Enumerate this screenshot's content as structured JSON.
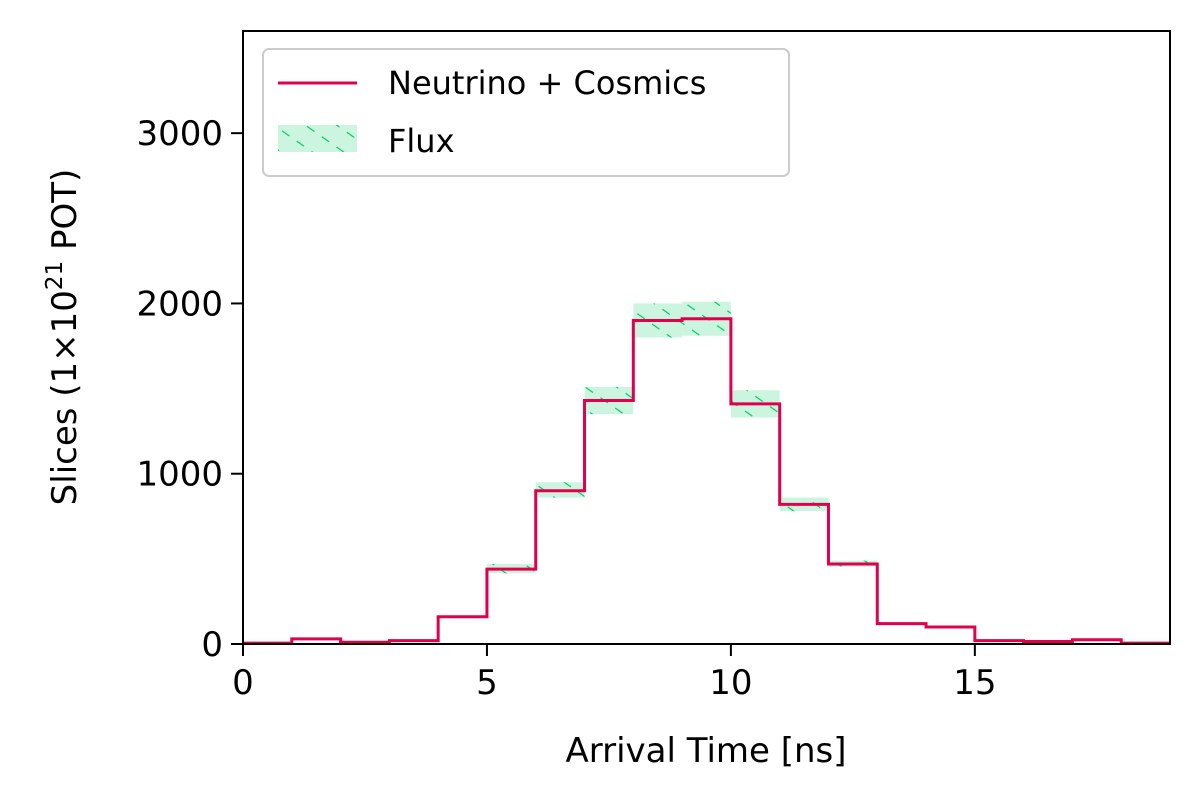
{
  "chart_data": {
    "type": "histogram",
    "xlabel": "Arrival Time [ns]",
    "ylabel": {
      "prefix": "Slices (1×10",
      "superscript": "21",
      "suffix": " POT)"
    },
    "xlim": [
      0,
      19
    ],
    "ylim": [
      0,
      3600
    ],
    "xticks": [
      0,
      5,
      10,
      15
    ],
    "yticks": [
      0,
      1000,
      2000,
      3000
    ],
    "bin_edges": [
      0,
      1,
      2,
      3,
      4,
      5,
      6,
      7,
      8,
      9,
      10,
      11,
      12,
      13,
      14,
      15,
      16,
      17,
      18,
      19
    ],
    "series": [
      {
        "name": "Neutrino + Cosmics",
        "color": "#e0004d",
        "values": [
          5,
          30,
          10,
          20,
          160,
          440,
          900,
          1430,
          1900,
          1910,
          1410,
          820,
          470,
          120,
          100,
          20,
          15,
          25,
          5
        ]
      }
    ],
    "band": {
      "name": "Flux",
      "color": "#00cc66",
      "fill": "#ccf5e0",
      "lower": [
        5,
        30,
        10,
        20,
        160,
        415,
        860,
        1350,
        1800,
        1810,
        1330,
        780,
        455,
        120,
        100,
        20,
        15,
        25,
        5
      ],
      "upper": [
        5,
        30,
        10,
        20,
        160,
        470,
        950,
        1510,
        2000,
        2010,
        1490,
        860,
        490,
        120,
        100,
        20,
        15,
        25,
        5
      ]
    },
    "legend": {
      "position": "top-left"
    },
    "grid": false
  }
}
